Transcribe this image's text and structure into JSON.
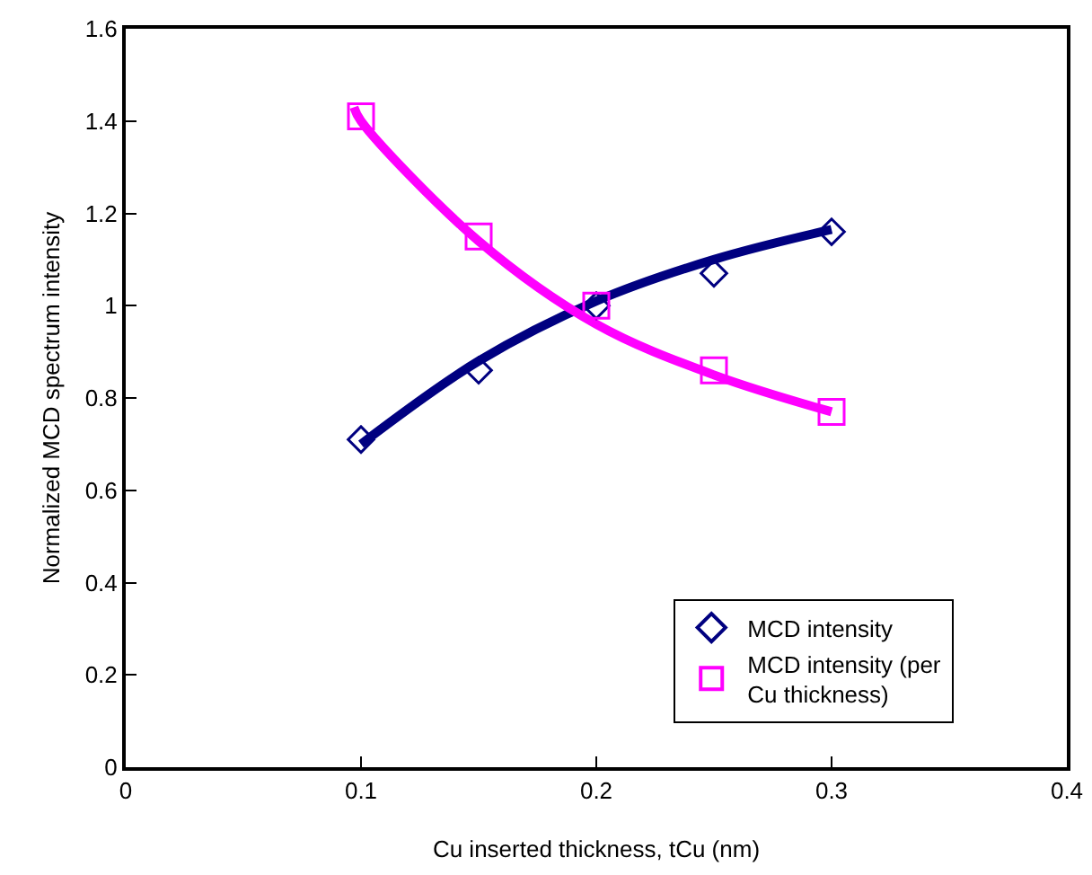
{
  "chart_data": {
    "type": "scatter",
    "xlabel": "Cu inserted thickness, tCu (nm)",
    "ylabel": "Normalized MCD spectrum intensity",
    "xlim": [
      0,
      0.4
    ],
    "xticks": [
      0,
      0.1,
      0.2,
      0.3,
      0.4
    ],
    "ylim": [
      0,
      1.6
    ],
    "yticks": [
      0,
      0.2,
      0.4,
      0.6,
      0.8,
      1,
      1.2,
      1.4,
      1.6
    ],
    "grid": false,
    "legend": "bottom right",
    "series": [
      {
        "type": "line",
        "color": "#000080",
        "marker": "none",
        "line_style": "solid",
        "x": [
          0.1,
          0.15,
          0.2,
          0.25,
          0.3
        ],
        "values": [
          0.7,
          0.88,
          1.01,
          1.1,
          1.165
        ]
      },
      {
        "type": "line",
        "color": "#ff00ff",
        "marker": "none",
        "line_style": "solid",
        "x": [
          0.097,
          0.1,
          0.15,
          0.2,
          0.25,
          0.3
        ],
        "values": [
          1.43,
          1.4,
          1.14,
          0.96,
          0.85,
          0.77
        ]
      },
      {
        "name": "MCD intensity",
        "color": "#000080",
        "marker": "diamond",
        "x": [
          0.1,
          0.15,
          0.2,
          0.25,
          0.3
        ],
        "values": [
          0.71,
          0.86,
          1.0,
          1.07,
          1.16
        ]
      },
      {
        "name": "MCD intensity (per Cu thickness)",
        "color": "#ff00ff",
        "marker": "square",
        "x": [
          0.1,
          0.15,
          0.2,
          0.25,
          0.3
        ],
        "values": [
          1.41,
          1.15,
          1.0,
          0.86,
          0.77
        ]
      }
    ]
  }
}
